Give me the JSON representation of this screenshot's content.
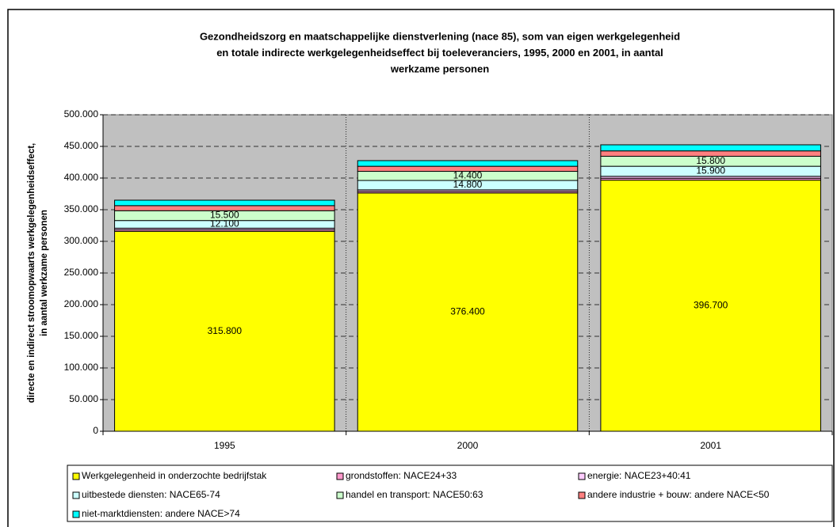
{
  "chart_data": {
    "type": "stacked_bar",
    "title": [
      "Gezondheidszorg en maatschappelijke dienstverlening (nace 85), som van eigen werkgelegenheid",
      "en totale indirecte werkgelegenheidseffect bij toeleveranciers, 1995, 2000 en 2001, in aantal",
      "werkzame personen"
    ],
    "ylabel": [
      "directe en indirect stroomopwaarts werkgelegenheidseffect,",
      "in aantal werkzame personen"
    ],
    "categories": [
      "1995",
      "2000",
      "2001"
    ],
    "series": [
      {
        "name": "Werkgelegenheid in onderzochte bedrijfstak",
        "color": "#ffff00",
        "values": [
          315800,
          376400,
          396700
        ],
        "value_labels": [
          "315.800",
          "376.400",
          "396.700"
        ]
      },
      {
        "name": "grondstoffen: NACE24+33",
        "color": "#ff99cc",
        "values": [
          2500,
          2500,
          3000
        ]
      },
      {
        "name": "energie: NACE23+40:41",
        "color": "#ffccff",
        "values": [
          2500,
          2500,
          3000
        ]
      },
      {
        "name": "uitbestede diensten: NACE65-74",
        "color": "#ccffff",
        "values": [
          12100,
          14800,
          15900
        ],
        "value_labels": [
          "12.100",
          "14.800",
          "15.900"
        ]
      },
      {
        "name": "handel en transport: NACE50:63",
        "color": "#ccffcc",
        "values": [
          15500,
          14400,
          15800
        ],
        "value_labels": [
          "15.500",
          "14.400",
          "15.800"
        ]
      },
      {
        "name": "andere industrie + bouw: andere NACE<50",
        "color": "#ff8080",
        "values": [
          8000,
          8000,
          8500
        ]
      },
      {
        "name": "niet-marktdiensten: andere NACE>74",
        "color": "#00ffff",
        "values": [
          8600,
          8900,
          9600
        ]
      }
    ],
    "ylim": [
      0,
      500000
    ],
    "yticks": [
      {
        "value": 0,
        "label": "0"
      },
      {
        "value": 50000,
        "label": "50.000"
      },
      {
        "value": 100000,
        "label": "100.000"
      },
      {
        "value": 150000,
        "label": "150.000"
      },
      {
        "value": 200000,
        "label": "200.000"
      },
      {
        "value": 250000,
        "label": "250.000"
      },
      {
        "value": 300000,
        "label": "300.000"
      },
      {
        "value": 350000,
        "label": "350.000"
      },
      {
        "value": 400000,
        "label": "400.000"
      },
      {
        "value": 450000,
        "label": "450.000"
      },
      {
        "value": 500000,
        "label": "500.000"
      }
    ],
    "grid": true,
    "plot_background": "#c0c0c0"
  }
}
